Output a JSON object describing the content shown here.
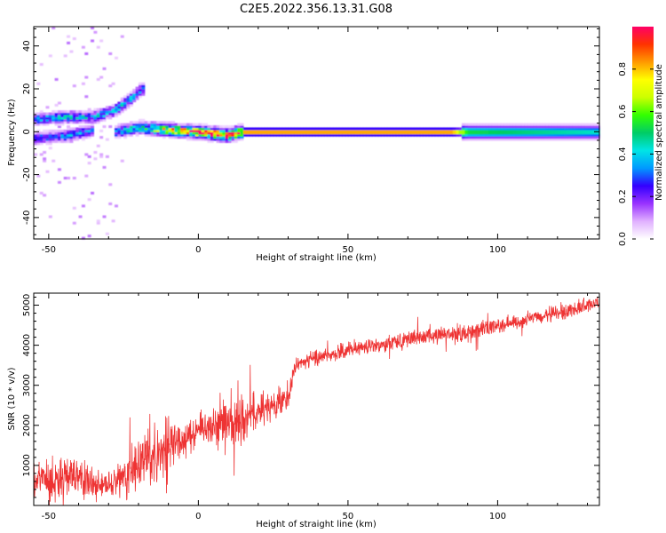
{
  "figure_title": "C2E5.2022.356.13.31.G08",
  "chart_data": [
    {
      "type": "heatmap",
      "panel": "spectrogram",
      "xlabel": "Height of straight line (km)",
      "ylabel": "Frequency (Hz)",
      "xlim": [
        -55,
        134
      ],
      "ylim": [
        -50,
        49
      ],
      "xticks": [
        -50,
        0,
        50,
        100
      ],
      "yticks": [
        -40,
        -20,
        0,
        20,
        40
      ],
      "colorbar": {
        "label": "Normalized spectral amplitude",
        "ticks": [
          "0.0",
          "0.2",
          "0.4",
          "0.6",
          "0.8"
        ],
        "tick_values": [
          0.0,
          0.2,
          0.4,
          0.6,
          0.8
        ],
        "range": [
          0,
          1
        ],
        "colormap": [
          "#ffffff",
          "#e0b0ff",
          "#9933ff",
          "#3300ff",
          "#0099ff",
          "#00e5e5",
          "#00cc66",
          "#33ff00",
          "#ccff00",
          "#ffff00",
          "#ff9900",
          "#ff3300",
          "#ff0066"
        ]
      },
      "features": [
        {
          "name": "main-band",
          "x": [
            -28,
            134
          ],
          "freq_center": [
            [
              -28,
              0.0
            ],
            [
              -20,
              2.0
            ],
            [
              -10,
              1.0
            ],
            [
              0,
              0.0
            ],
            [
              10,
              -1.5
            ],
            [
              14,
              0.0
            ],
            [
              134,
              0.0
            ]
          ],
          "peak_amplitude": [
            [
              -28,
              0.35
            ],
            [
              -20,
              0.45
            ],
            [
              -10,
              0.7
            ],
            [
              0,
              0.85
            ],
            [
              15,
              0.95
            ],
            [
              85,
              0.95
            ],
            [
              90,
              0.55
            ],
            [
              134,
              0.45
            ]
          ]
        },
        {
          "name": "upper-branch",
          "x": [
            -55,
            -18
          ],
          "freq_center": [
            [
              -55,
              6
            ],
            [
              -45,
              7
            ],
            [
              -35,
              7
            ],
            [
              -28,
              10
            ],
            [
              -22,
              16
            ],
            [
              -19,
              20
            ]
          ],
          "peak_amplitude": 0.35
        },
        {
          "name": "lower-branch",
          "x": [
            -55,
            -35
          ],
          "freq_center": [
            [
              -55,
              -3
            ],
            [
              -45,
              -2
            ],
            [
              -38,
              0
            ],
            [
              -35,
              1
            ]
          ],
          "peak_amplitude": 0.3
        }
      ]
    },
    {
      "type": "line",
      "panel": "snr",
      "xlabel": "Height of straight line (km)",
      "ylabel": "SNR (10 * v/v)",
      "xlim": [
        -55,
        134
      ],
      "ylim": [
        0,
        5300
      ],
      "xticks": [
        -50,
        0,
        50,
        100
      ],
      "yticks": [
        1000,
        2000,
        3000,
        4000,
        5000
      ],
      "color": "#ee3333",
      "x": [
        -55,
        -50,
        -45,
        -40,
        -35,
        -30,
        -25,
        -20,
        -15,
        -10,
        -5,
        0,
        5,
        10,
        15,
        20,
        25,
        30,
        32,
        35,
        40,
        45,
        50,
        55,
        60,
        65,
        70,
        75,
        80,
        85,
        88,
        90,
        95,
        100,
        105,
        110,
        115,
        120,
        125,
        130,
        134
      ],
      "y": [
        600,
        700,
        650,
        700,
        500,
        450,
        700,
        1000,
        1300,
        1500,
        1700,
        1900,
        2000,
        2100,
        2200,
        2400,
        2500,
        2650,
        3400,
        3600,
        3700,
        3800,
        3850,
        3950,
        4000,
        4100,
        4150,
        4200,
        4250,
        4300,
        4250,
        4300,
        4400,
        4500,
        4550,
        4650,
        4700,
        4800,
        4900,
        5000,
        5050
      ],
      "noise_amplitude": [
        400,
        450,
        450,
        400,
        300,
        300,
        400,
        600,
        700,
        500,
        400,
        350,
        500,
        600,
        600,
        300,
        300,
        300,
        180,
        150,
        150,
        160,
        160,
        160,
        160,
        170,
        170,
        170,
        170,
        170,
        250,
        180,
        160,
        160,
        150,
        150,
        150,
        150,
        150,
        150,
        150
      ]
    }
  ]
}
